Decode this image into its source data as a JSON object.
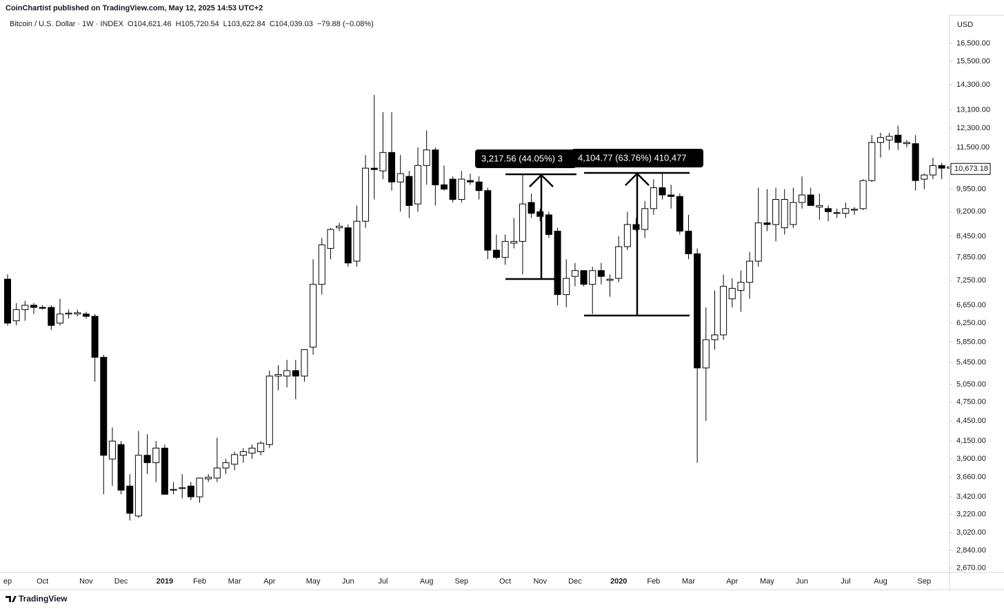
{
  "header": {
    "byline": "CoinChartist published on TradingView.com, May 12, 2025 14:53 UTC+2"
  },
  "footer": {
    "brand": "TradingView"
  },
  "chart_data": {
    "type": "candlestick",
    "title": "Bitcoin / U.S. Dollar · 1W · INDEX",
    "ohlc_legend": [
      "O104,621.46",
      "H105,720.54",
      "L103,622.84",
      "C104,039.03",
      "−79.88 (−0.08%)"
    ],
    "y_unit": "USD",
    "log_scale": true,
    "up_color": "#ffffff",
    "down_color": "#000000",
    "wick_color": "#000000",
    "ylim": [
      2630,
      18200
    ],
    "yticks": [
      {
        "value": 16500,
        "label": "16,500.00"
      },
      {
        "value": 15500,
        "label": "15,500.00"
      },
      {
        "value": 14300,
        "label": "14,300.00"
      },
      {
        "value": 13100,
        "label": "13,100.00"
      },
      {
        "value": 12300,
        "label": "12,300.00"
      },
      {
        "value": 11500,
        "label": "11,500.00"
      },
      {
        "value": 9950,
        "label": "9,950.00"
      },
      {
        "value": 9200,
        "label": "9,200.00"
      },
      {
        "value": 8450,
        "label": "8,450.00"
      },
      {
        "value": 7850,
        "label": "7,850.00"
      },
      {
        "value": 7250,
        "label": "7,250.00"
      },
      {
        "value": 6650,
        "label": "6,650.00"
      },
      {
        "value": 6250,
        "label": "6,250.00"
      },
      {
        "value": 5850,
        "label": "5,850.00"
      },
      {
        "value": 5450,
        "label": "5,450.00"
      },
      {
        "value": 5050,
        "label": "5,050.00"
      },
      {
        "value": 4750,
        "label": "4,750.00"
      },
      {
        "value": 4450,
        "label": "4,450.00"
      },
      {
        "value": 4150,
        "label": "4,150.00"
      },
      {
        "value": 3900,
        "label": "3,900.00"
      },
      {
        "value": 3660,
        "label": "3,660.00"
      },
      {
        "value": 3420,
        "label": "3,420.00"
      },
      {
        "value": 3220,
        "label": "3,220.00"
      },
      {
        "value": 3020,
        "label": "3,020.00"
      },
      {
        "value": 2840,
        "label": "2,840.00"
      },
      {
        "value": 2670,
        "label": "2,670.00"
      }
    ],
    "last_price": {
      "value": 10673.18,
      "label": "10,673.18"
    },
    "annotations": [
      "3,217.56 (44.05%) 3",
      "4,104.77 (63.76%) 410,477"
    ],
    "categories": [
      "ep",
      null,
      null,
      null,
      "Oct",
      null,
      null,
      null,
      null,
      "Nov",
      null,
      null,
      null,
      "Dec",
      null,
      null,
      null,
      null,
      "2019",
      null,
      null,
      null,
      "Feb",
      null,
      null,
      null,
      "Mar",
      null,
      null,
      null,
      "Apr",
      null,
      null,
      null,
      null,
      "May",
      null,
      null,
      null,
      "Jun",
      null,
      null,
      null,
      "Jul",
      null,
      null,
      null,
      null,
      "Aug",
      null,
      null,
      null,
      "Sep",
      null,
      null,
      null,
      null,
      "Oct",
      null,
      null,
      null,
      "Nov",
      null,
      null,
      null,
      "Dec",
      null,
      null,
      null,
      null,
      "2020",
      null,
      null,
      null,
      "Feb",
      null,
      null,
      null,
      "Mar",
      null,
      null,
      null,
      null,
      "Apr",
      null,
      null,
      null,
      "May",
      null,
      null,
      null,
      "Jun",
      null,
      null,
      null,
      null,
      "Jul",
      null,
      null,
      null,
      "Aug",
      null,
      null,
      null,
      null,
      "Sep",
      null,
      null,
      null
    ],
    "open": [
      7280,
      6300,
      6550,
      6650,
      6600,
      6600,
      6250,
      6450,
      6450,
      6450,
      6400,
      5550,
      3900,
      4100,
      3550,
      3200,
      3950,
      3850,
      4050,
      3500,
      3520,
      3550,
      3420,
      3640,
      3650,
      3780,
      3830,
      3950,
      3980,
      4000,
      4100,
      5200,
      5200,
      5300,
      5200,
      5750,
      7150,
      8100,
      8700,
      8700,
      7750,
      8900,
      10700,
      10600,
      11300,
      10200,
      10400,
      9450,
      10800,
      11400,
      10100,
      10300,
      9600,
      10250,
      10200,
      9900,
      8050,
      7850,
      8250,
      8300,
      9500,
      9200,
      9100,
      8600,
      6900,
      7350,
      7500,
      7150,
      7500,
      7250,
      7300,
      8150,
      8800,
      8650,
      9300,
      10000,
      9750,
      9700,
      8600,
      7950,
      5350,
      5900,
      6000,
      6800,
      7000,
      7200,
      7750,
      8850,
      8800,
      8700,
      8800,
      9500,
      9750,
      9350,
      9300,
      9150,
      9150,
      9250,
      9300,
      10250,
      11700,
      11800,
      12000,
      11650,
      11650,
      10300,
      10450,
      10800,
      10700
    ],
    "high": [
      7400,
      6700,
      6750,
      6700,
      6650,
      6650,
      6800,
      6550,
      6550,
      6500,
      6450,
      5600,
      4350,
      4150,
      3700,
      4300,
      4250,
      4150,
      4100,
      3600,
      3700,
      3600,
      3650,
      3700,
      4200,
      3900,
      4000,
      4050,
      4100,
      4150,
      5300,
      5400,
      5500,
      5500,
      5700,
      7800,
      8400,
      8700,
      8850,
      8800,
      9400,
      11200,
      13800,
      13000,
      13000,
      11200,
      10600,
      11500,
      12200,
      11500,
      10800,
      10400,
      10600,
      10500,
      10400,
      10000,
      8500,
      8500,
      9000,
      10450,
      9800,
      9300,
      9200,
      8700,
      7800,
      7700,
      7500,
      7600,
      7700,
      7400,
      8450,
      9200,
      9000,
      9550,
      10300,
      10500,
      10100,
      9800,
      9100,
      8100,
      6600,
      7000,
      7400,
      7300,
      7500,
      8000,
      10000,
      9950,
      10000,
      9950,
      10000,
      10400,
      10000,
      9800,
      9400,
      9300,
      9500,
      9350,
      10300,
      12000,
      12100,
      12100,
      12400,
      11800,
      12000,
      10500,
      11100,
      10900,
      10800
    ],
    "low": [
      6200,
      6200,
      6300,
      6450,
      6550,
      6100,
      6200,
      6350,
      6400,
      6350,
      5100,
      3450,
      3550,
      3450,
      3150,
      3180,
      3700,
      3600,
      3450,
      3450,
      3400,
      3380,
      3350,
      3600,
      3600,
      3700,
      3750,
      3850,
      3900,
      3950,
      4050,
      4950,
      5000,
      4800,
      5100,
      5600,
      6900,
      7800,
      8600,
      7600,
      7600,
      8700,
      9600,
      10300,
      9900,
      9200,
      9000,
      9200,
      10100,
      9400,
      9900,
      9500,
      9500,
      10100,
      9600,
      7800,
      7800,
      7650,
      8100,
      7400,
      9000,
      8900,
      8400,
      6650,
      6600,
      7100,
      7100,
      6450,
      7150,
      6850,
      7200,
      8050,
      8600,
      8400,
      9100,
      9600,
      9300,
      8500,
      7800,
      3850,
      4450,
      5700,
      5900,
      6600,
      6500,
      6800,
      7600,
      8600,
      8300,
      8500,
      8700,
      9300,
      9400,
      8950,
      8900,
      9000,
      9000,
      9100,
      9250,
      10200,
      11100,
      11400,
      11400,
      11500,
      9900,
      9950,
      10300,
      10300,
      10500
    ],
    "close": [
      6250,
      6550,
      6650,
      6600,
      6580,
      6200,
      6450,
      6470,
      6480,
      6400,
      5550,
      3950,
      4150,
      3500,
      3230,
      3950,
      3850,
      4050,
      3450,
      3510,
      3530,
      3420,
      3650,
      3660,
      3780,
      3850,
      3960,
      4000,
      4050,
      4120,
      5200,
      5230,
      5300,
      5200,
      5700,
      7150,
      8200,
      8650,
      8750,
      7700,
      8900,
      10700,
      10650,
      11300,
      10200,
      10500,
      9400,
      10800,
      11400,
      10100,
      9950,
      9600,
      10300,
      10200,
      9900,
      8050,
      7850,
      8300,
      8300,
      9450,
      9150,
      9050,
      8500,
      6900,
      7300,
      7500,
      7150,
      7500,
      7350,
      7280,
      8150,
      8800,
      8650,
      9300,
      10000,
      9750,
      9700,
      8600,
      7950,
      5350,
      5900,
      6000,
      7100,
      7050,
      7200,
      7750,
      8850,
      8800,
      9600,
      9600,
      9500,
      9750,
      9400,
      9400,
      9200,
      9170,
      9300,
      9280,
      10250,
      11700,
      11900,
      11950,
      11700,
      11700,
      10250,
      10450,
      10800,
      10700,
      10750
    ]
  }
}
